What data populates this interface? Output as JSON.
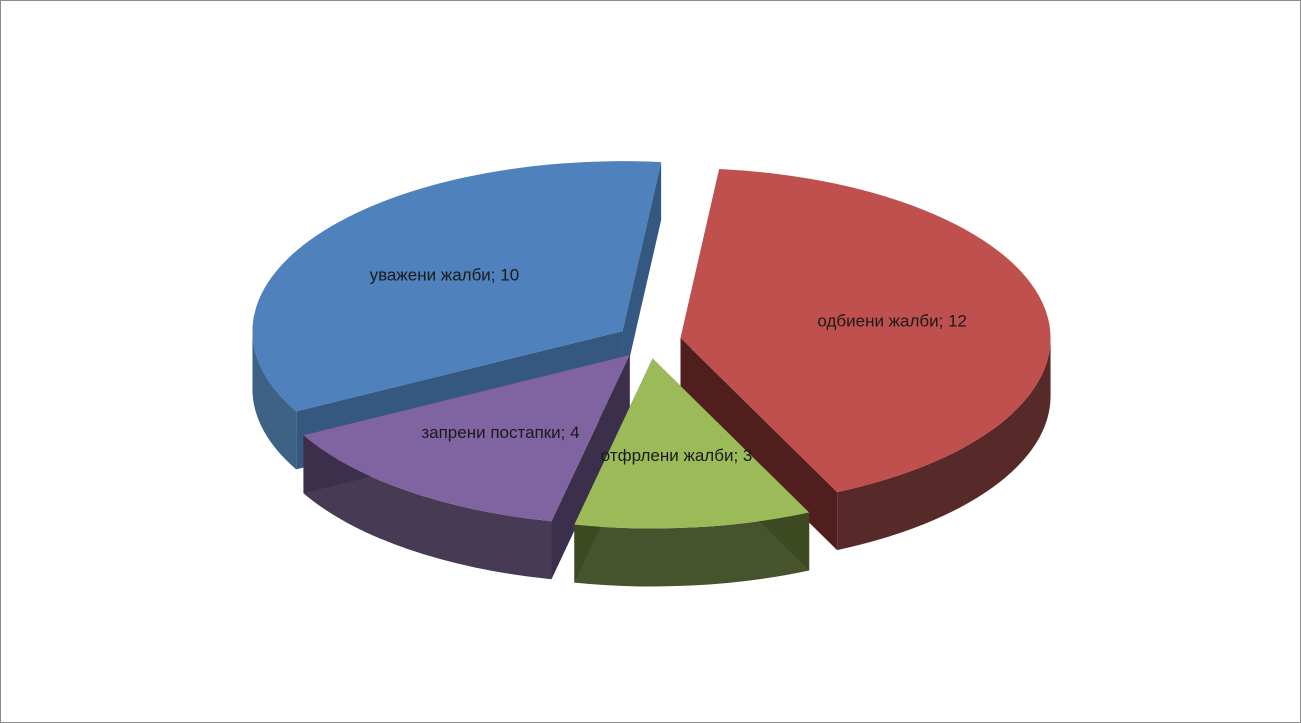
{
  "chart_data": {
    "type": "pie",
    "title": "",
    "slices": [
      {
        "category": "одбиени жалби",
        "value": 12,
        "label": "одбиени жалби; 12",
        "color": "#c0504d",
        "side_color": "#4f1e1d"
      },
      {
        "category": "отфрлени жалби",
        "value": 3,
        "label": "отфрлени жалби; 3",
        "color": "#9bbb59",
        "side_color": "#3d4a22"
      },
      {
        "category": "запрени постапки",
        "value": 4,
        "label": "запрени постапки; 4",
        "color": "#8064a2",
        "side_color": "#3c2f4c"
      },
      {
        "category": "уважени жалби",
        "value": 10,
        "label": "уважени жалби; 10",
        "color": "#4f81bd",
        "side_color": "#345880"
      }
    ],
    "exploded": true,
    "three_d": true,
    "legend": "none"
  }
}
